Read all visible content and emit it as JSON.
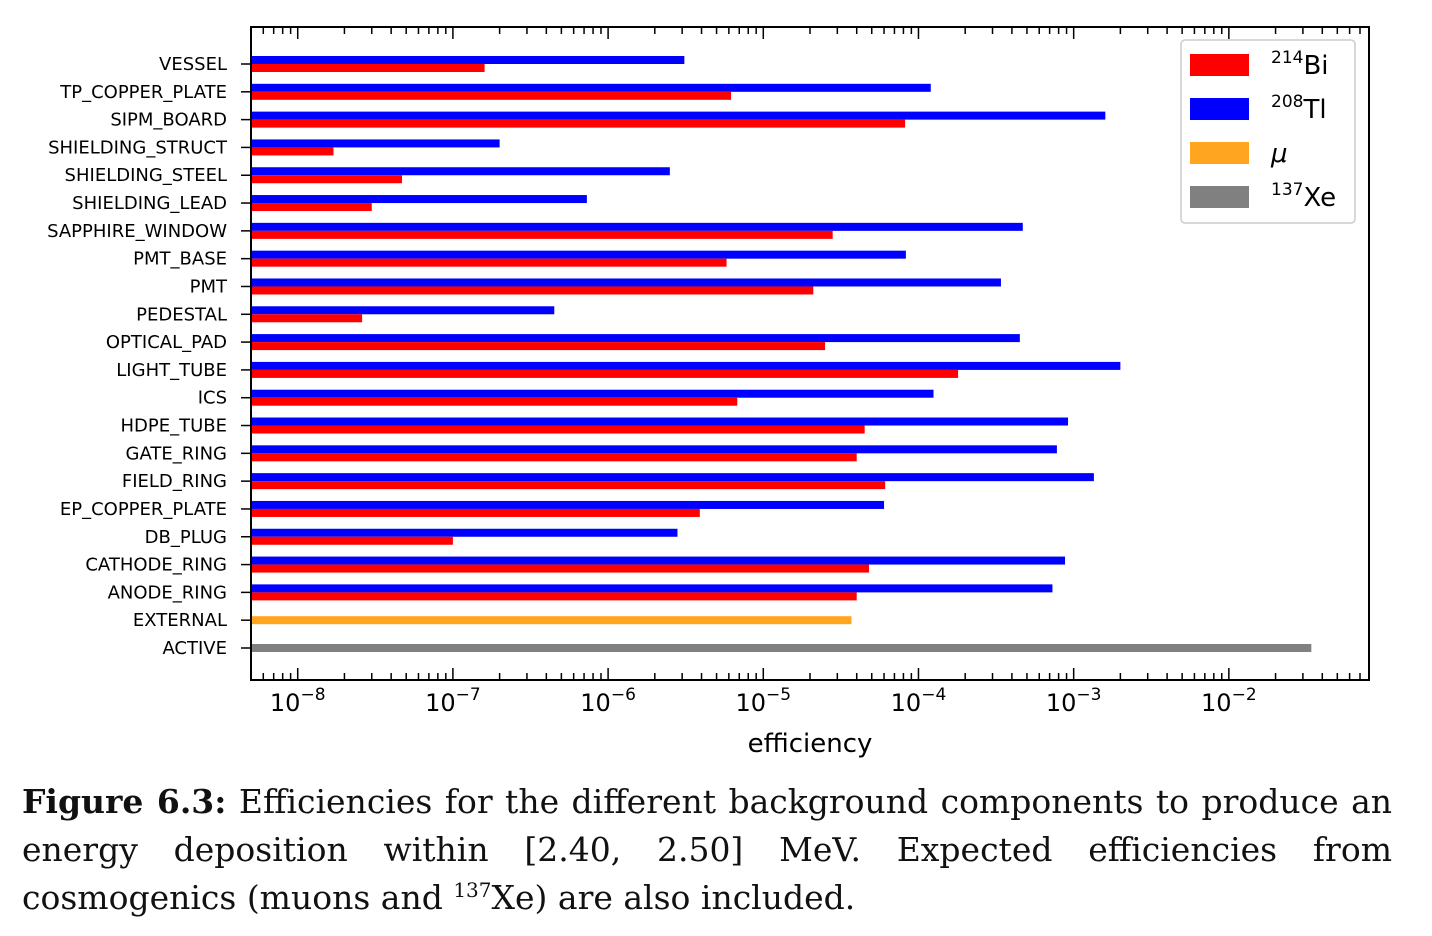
{
  "chart_data": {
    "type": "bar",
    "orientation": "horizontal",
    "xscale": "log",
    "xlabel": "efficiency",
    "xlim": [
      5e-09,
      0.08
    ],
    "xtick_labels": [
      {
        "base": "10",
        "exp": "−8"
      },
      {
        "base": "10",
        "exp": "−7"
      },
      {
        "base": "10",
        "exp": "−6"
      },
      {
        "base": "10",
        "exp": "−5"
      },
      {
        "base": "10",
        "exp": "−4"
      },
      {
        "base": "10",
        "exp": "−3"
      },
      {
        "base": "10",
        "exp": "−2"
      }
    ],
    "categories": [
      "VESSEL",
      "TP_COPPER_PLATE",
      "SIPM_BOARD",
      "SHIELDING_STRUCT",
      "SHIELDING_STEEL",
      "SHIELDING_LEAD",
      "SAPPHIRE_WINDOW",
      "PMT_BASE",
      "PMT",
      "PEDESTAL",
      "OPTICAL_PAD",
      "LIGHT_TUBE",
      "ICS",
      "HDPE_TUBE",
      "GATE_RING",
      "FIELD_RING",
      "EP_COPPER_PLATE",
      "DB_PLUG",
      "CATHODE_RING",
      "ANODE_RING",
      "EXTERNAL",
      "ACTIVE"
    ],
    "series": [
      {
        "key": "tl208",
        "color": "#0000ff",
        "values": [
          3.1e-06,
          0.00012,
          0.0016,
          2e-07,
          2.5e-06,
          7.3e-07,
          0.00047,
          8.3e-05,
          0.00034,
          4.5e-07,
          0.00045,
          0.002,
          0.000125,
          0.00092,
          0.00078,
          0.00135,
          6e-05,
          2.8e-06,
          0.00088,
          0.00073,
          null,
          null
        ]
      },
      {
        "key": "bi214",
        "color": "#ff0000",
        "values": [
          1.6e-07,
          6.2e-06,
          8.2e-05,
          1.7e-08,
          4.7e-08,
          3e-08,
          2.8e-05,
          5.8e-06,
          2.1e-05,
          2.6e-08,
          2.5e-05,
          0.00018,
          6.8e-06,
          4.5e-05,
          4e-05,
          6.1e-05,
          3.9e-06,
          1e-07,
          4.8e-05,
          4e-05,
          null,
          null
        ]
      },
      {
        "key": "mu",
        "color": "#ffa520",
        "values": [
          null,
          null,
          null,
          null,
          null,
          null,
          null,
          null,
          null,
          null,
          null,
          null,
          null,
          null,
          null,
          null,
          null,
          null,
          null,
          null,
          3.7e-05,
          null
        ]
      },
      {
        "key": "xe137",
        "color": "#808080",
        "values": [
          null,
          null,
          null,
          null,
          null,
          null,
          null,
          null,
          null,
          null,
          null,
          null,
          null,
          null,
          null,
          null,
          null,
          null,
          null,
          null,
          null,
          0.034
        ]
      }
    ],
    "legend": {
      "placement": "top-right",
      "entries": [
        {
          "color": "#ff0000",
          "sup": "214",
          "text": "Bi",
          "italic": false
        },
        {
          "color": "#0000ff",
          "sup": "208",
          "text": "Tl",
          "italic": false
        },
        {
          "color": "#ffa520",
          "sup": "",
          "text": "μ",
          "italic": true
        },
        {
          "color": "#808080",
          "sup": "137",
          "text": "Xe",
          "italic": false
        }
      ]
    },
    "grid": false
  },
  "caption": {
    "label": "Figure 6.3:",
    "text_1": "Efficiencies for the different background components to produce an energy deposition within [2.40, 2.50] MeV. Expected efficiencies from cosmogenics (muons and ",
    "sup": "137",
    "text_2": "Xe) are also included."
  }
}
